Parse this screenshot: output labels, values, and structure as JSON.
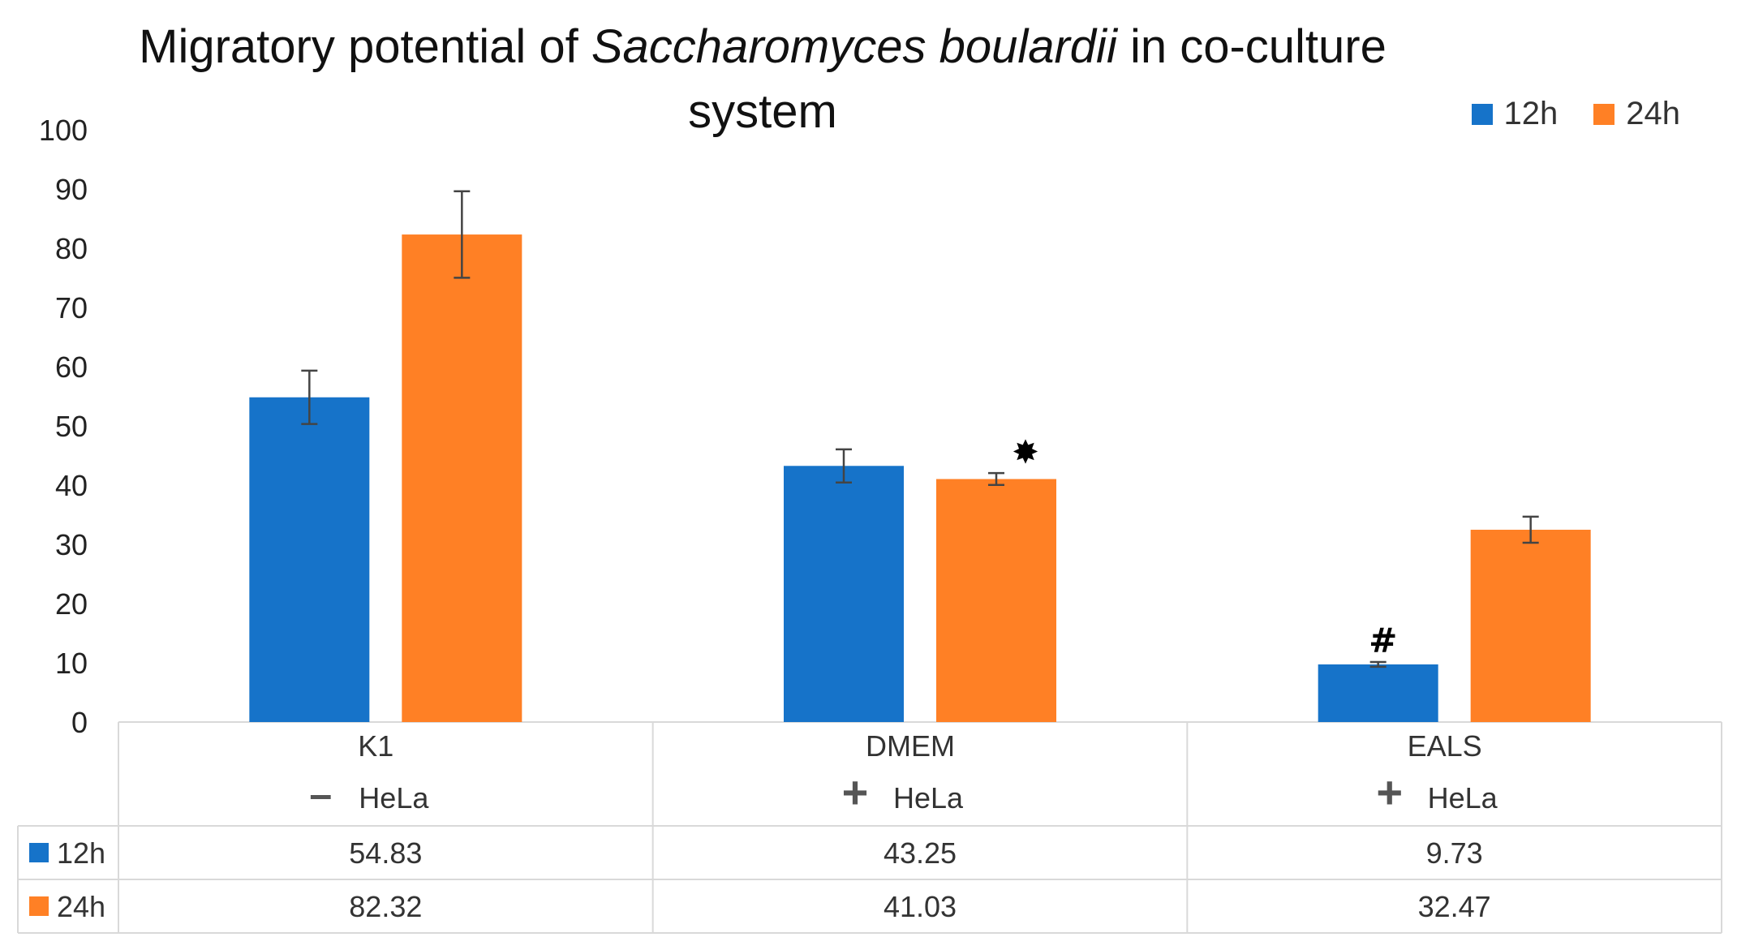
{
  "chart_data": {
    "type": "bar",
    "title": {
      "prefix": "Migratory potential of ",
      "italic": "Saccharomyces boulardii",
      "suffix": " in co-culture",
      "line2": "system"
    },
    "ylim": [
      0,
      100
    ],
    "yticks": [
      0,
      10,
      20,
      30,
      40,
      50,
      60,
      70,
      80,
      90,
      100
    ],
    "grid": false,
    "legend_position": "top-right",
    "categories": [
      "K1",
      "DMEM",
      "EALS"
    ],
    "hela_signs": [
      "–",
      "+",
      "+"
    ],
    "hela_label": "HeLa",
    "series": [
      {
        "name": "12h",
        "color": "#1673C9",
        "values": [
          54.83,
          43.25,
          9.73
        ],
        "errors": [
          4.5,
          2.8,
          0.4
        ],
        "labels": [
          "54.83",
          "43.25",
          "9.73"
        ]
      },
      {
        "name": "24h",
        "color": "#FF8025",
        "values": [
          82.32,
          41.03,
          32.47
        ],
        "errors": [
          7.3,
          1.0,
          2.2
        ],
        "labels": [
          "82.32",
          "41.03",
          "32.47"
        ]
      }
    ],
    "annotations": [
      {
        "category": "DMEM",
        "series": "24h",
        "text": "✸"
      },
      {
        "category": "EALS",
        "series": "12h",
        "text": "#"
      }
    ]
  }
}
